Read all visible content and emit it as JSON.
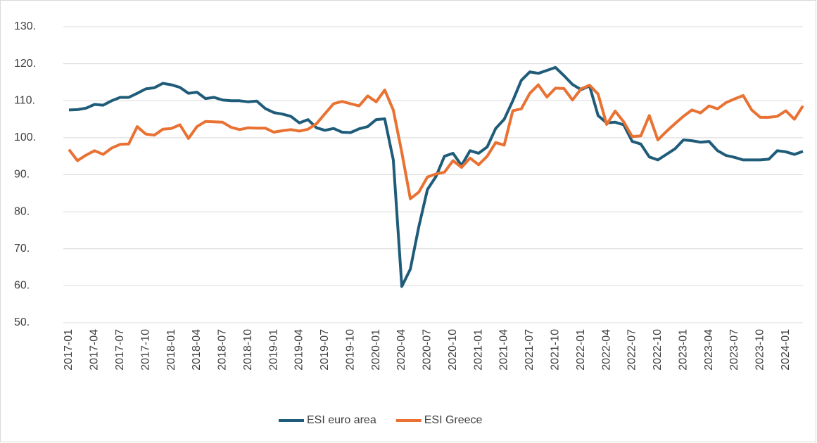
{
  "chart_data": {
    "type": "line",
    "categories": [
      "2017-01",
      null,
      null,
      "2017-04",
      null,
      null,
      "2017-07",
      null,
      null,
      "2017-10",
      null,
      null,
      "2018-01",
      null,
      null,
      "2018-04",
      null,
      null,
      "2018-07",
      null,
      null,
      "2018-10",
      null,
      null,
      "2019-01",
      null,
      null,
      "2019-04",
      null,
      null,
      "2019-07",
      null,
      null,
      "2019-10",
      null,
      null,
      "2020-01",
      null,
      null,
      "2020-04",
      null,
      null,
      "2020-07",
      null,
      null,
      "2020-10",
      null,
      null,
      "2021-01",
      null,
      null,
      "2021-04",
      null,
      null,
      "2021-07",
      null,
      null,
      "2021-10",
      null,
      null,
      "2022-01",
      null,
      null,
      "2022-04",
      null,
      null,
      "2022-07",
      null,
      null,
      "2022-10",
      null,
      null,
      "2023-01",
      null,
      null,
      "2023-04",
      null,
      null,
      "2023-07",
      null,
      null,
      "2023-10",
      null,
      null,
      "2024-01",
      null,
      null
    ],
    "series": [
      {
        "name": "ESI euro area",
        "color": "#1f5c7a",
        "values": [
          107.5,
          107.6,
          108.0,
          109.0,
          108.8,
          110.0,
          110.9,
          110.9,
          112.0,
          113.2,
          113.5,
          114.7,
          114.3,
          113.6,
          112.0,
          112.3,
          110.6,
          110.9,
          110.2,
          110.0,
          110.0,
          109.7,
          109.9,
          107.9,
          106.8,
          106.4,
          105.8,
          104.0,
          104.9,
          102.7,
          102.0,
          102.5,
          101.5,
          101.4,
          102.4,
          103.0,
          104.9,
          105.1,
          94.0,
          59.8,
          64.5,
          76.0,
          86.0,
          89.5,
          95.0,
          95.8,
          92.5,
          96.5,
          95.8,
          97.5,
          102.5,
          105.0,
          110.0,
          115.5,
          117.8,
          117.4,
          118.2,
          119.0,
          116.8,
          114.4,
          113.0,
          114.0,
          106.0,
          104.0,
          104.2,
          103.5,
          99.0,
          98.3,
          94.8,
          94.0,
          95.5,
          97.0,
          99.4,
          99.2,
          98.8,
          99.0,
          96.5,
          95.2,
          94.7,
          94.0,
          94.0,
          94.0,
          94.2,
          96.5,
          96.2,
          95.5,
          96.3
        ]
      },
      {
        "name": "ESI Greece",
        "color": "#e97132",
        "values": [
          96.8,
          93.8,
          95.3,
          96.5,
          95.5,
          97.2,
          98.2,
          98.3,
          103.0,
          101.0,
          100.7,
          102.3,
          102.5,
          103.5,
          99.8,
          103.0,
          104.4,
          104.3,
          104.2,
          102.8,
          102.2,
          102.7,
          102.6,
          102.6,
          101.5,
          101.9,
          102.2,
          101.8,
          102.3,
          103.8,
          106.5,
          109.2,
          109.8,
          109.2,
          108.6,
          111.3,
          109.7,
          112.9,
          107.5,
          96.0,
          83.5,
          85.3,
          89.4,
          90.2,
          90.7,
          93.8,
          92.0,
          94.5,
          92.7,
          95.0,
          98.7,
          98.0,
          107.3,
          107.8,
          112.0,
          114.3,
          111.0,
          113.4,
          113.3,
          110.2,
          113.2,
          114.2,
          111.8,
          103.6,
          107.2,
          104.3,
          100.3,
          100.5,
          106.0,
          99.4,
          101.7,
          103.8,
          105.8,
          107.5,
          106.7,
          108.6,
          107.8,
          109.5,
          110.5,
          111.4,
          107.5,
          105.5,
          105.5,
          105.8,
          107.3,
          105.0,
          108.6
        ]
      }
    ],
    "ylim": [
      50,
      130
    ],
    "yticks": [
      {
        "value": 50,
        "label": "50."
      },
      {
        "value": 60,
        "label": "60."
      },
      {
        "value": 70,
        "label": "70."
      },
      {
        "value": 80,
        "label": "80."
      },
      {
        "value": 90,
        "label": "90."
      },
      {
        "value": 100,
        "label": "100."
      },
      {
        "value": 110,
        "label": "110."
      },
      {
        "value": 120,
        "label": "120."
      },
      {
        "value": 130,
        "label": "130."
      }
    ],
    "grid": true,
    "legend": "bottom"
  }
}
